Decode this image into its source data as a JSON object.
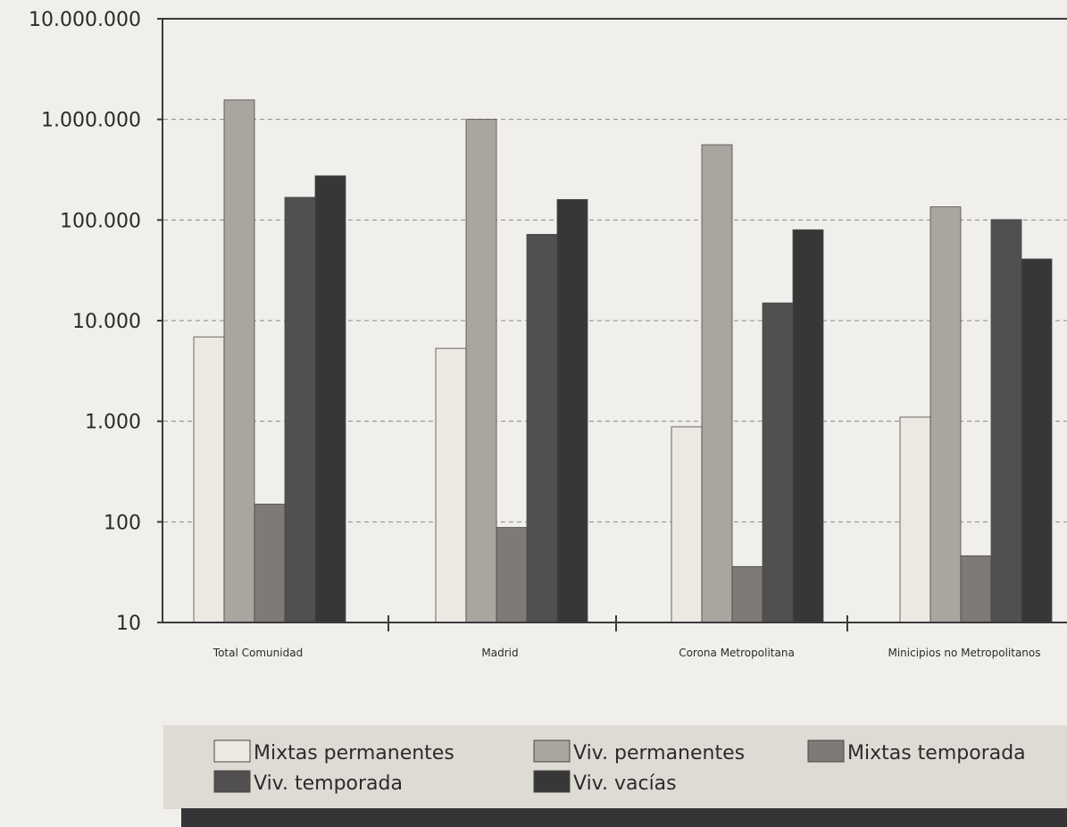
{
  "chart_data": {
    "type": "bar",
    "scale": "log",
    "ylim": [
      10,
      10000000
    ],
    "grid": true,
    "legend_position": "bottom",
    "y_tick_labels": [
      "10.000.000",
      "1.000.000",
      "100.000",
      "10.000",
      "1.000",
      "100",
      "10"
    ],
    "y_tick_values": [
      10000000,
      1000000,
      100000,
      10000,
      1000,
      100,
      10
    ],
    "categories": [
      "Total Comunidad",
      "Madrid",
      "Corona  Metropolitana",
      "Minicipios no Metropolitanos"
    ],
    "series": [
      {
        "name": "Mixtas permanentes",
        "color": "#ece8e2",
        "values": [
          6900,
          5300,
          880,
          1100
        ]
      },
      {
        "name": "Viv. permanentes",
        "color": "#aaa59f",
        "values": [
          1560000,
          1000000,
          560000,
          135000
        ]
      },
      {
        "name": "Mixtas temporada",
        "color": "#7d7a77",
        "values": [
          150,
          88,
          36,
          46
        ]
      },
      {
        "name": "Viv. temporada",
        "color": "#514f4f",
        "values": [
          168000,
          72000,
          15000,
          101000
        ]
      },
      {
        "name": "Viv. vacías",
        "color": "#383738",
        "values": [
          275000,
          160000,
          80000,
          41000
        ]
      }
    ]
  },
  "legend": {
    "row1": [
      "Mixtas permanentes",
      "Viv. permanentes",
      "Mixtas temporada"
    ],
    "row2": [
      "Viv. temporada",
      "Viv. vacías"
    ]
  },
  "colors": {
    "background": "#f0efec",
    "legend_band": "#dedbd5",
    "footer_bar": "#353436",
    "axis": "#3a3a3a",
    "grid": "#8a8a8a"
  }
}
